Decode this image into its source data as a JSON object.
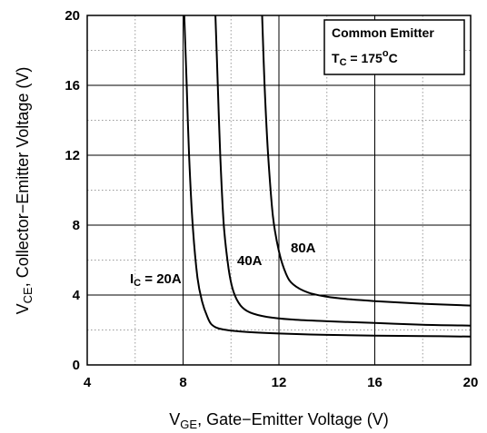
{
  "chart_data": {
    "type": "line",
    "xlabel": {
      "main": "V",
      "sub": "GE",
      "rest": ", Gate−Emitter Voltage (V)"
    },
    "ylabel": {
      "main": "V",
      "sub": "CE",
      "rest": ", Collector−Emitter Voltage (V)"
    },
    "xlim": [
      4,
      20
    ],
    "ylim": [
      0,
      20
    ],
    "xticks": [
      "4",
      "8",
      "12",
      "16",
      "20"
    ],
    "yticks": [
      "0",
      "4",
      "8",
      "12",
      "16",
      "20"
    ],
    "x_major_step": 4,
    "y_major_step": 4,
    "x_minor_step": 2,
    "y_minor_step": 2,
    "grid": true,
    "legend": {
      "position": "top-right",
      "line1": "Common Emitter",
      "line2_main": "T",
      "line2_sub": "C",
      "line2_rest": " = 175",
      "line2_sup": "o",
      "line2_end": "C"
    },
    "series": [
      {
        "label": {
          "main": "I",
          "sub": "C",
          "rest": " = 20A"
        },
        "points": [
          [
            8.05,
            20
          ],
          [
            8.15,
            16
          ],
          [
            8.25,
            12
          ],
          [
            8.4,
            8
          ],
          [
            8.6,
            5
          ],
          [
            8.8,
            3.6
          ],
          [
            9.0,
            2.8
          ],
          [
            9.2,
            2.3
          ],
          [
            9.6,
            2.05
          ],
          [
            10.5,
            1.9
          ],
          [
            12,
            1.8
          ],
          [
            14,
            1.72
          ],
          [
            16,
            1.68
          ],
          [
            18,
            1.65
          ],
          [
            20,
            1.62
          ]
        ]
      },
      {
        "label": {
          "main": "",
          "sub": "",
          "rest": "40A"
        },
        "points": [
          [
            9.35,
            20
          ],
          [
            9.45,
            16
          ],
          [
            9.55,
            12
          ],
          [
            9.7,
            8
          ],
          [
            9.9,
            5.5
          ],
          [
            10.1,
            4.2
          ],
          [
            10.4,
            3.4
          ],
          [
            10.8,
            3.0
          ],
          [
            11.5,
            2.75
          ],
          [
            12.5,
            2.6
          ],
          [
            14,
            2.5
          ],
          [
            16,
            2.4
          ],
          [
            18,
            2.3
          ],
          [
            20,
            2.25
          ]
        ]
      },
      {
        "label": {
          "main": "",
          "sub": "",
          "rest": "80A"
        },
        "points": [
          [
            11.3,
            20
          ],
          [
            11.4,
            16
          ],
          [
            11.55,
            12
          ],
          [
            11.75,
            8.5
          ],
          [
            12.0,
            6.5
          ],
          [
            12.3,
            5.2
          ],
          [
            12.6,
            4.6
          ],
          [
            13.2,
            4.15
          ],
          [
            14,
            3.9
          ],
          [
            15,
            3.75
          ],
          [
            16,
            3.65
          ],
          [
            18,
            3.5
          ],
          [
            20,
            3.4
          ]
        ]
      }
    ]
  }
}
